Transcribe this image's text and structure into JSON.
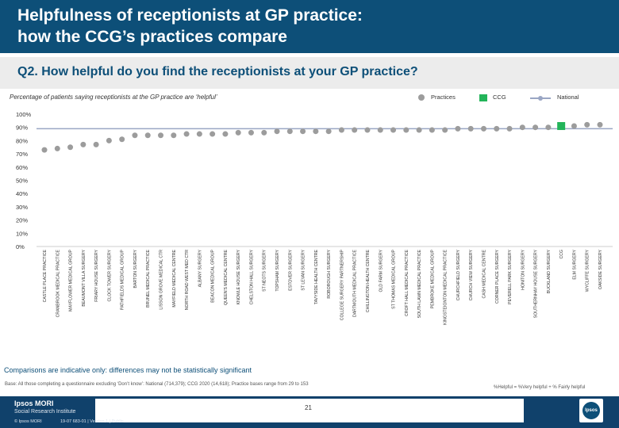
{
  "header": {
    "title_line1": "Helpfulness of receptionists at GP practice:",
    "title_line2": "how the CCG’s practices compare"
  },
  "question": "Q2. How helpful do you find the receptionists at your GP practice?",
  "chart_data": {
    "type": "scatter",
    "title": "Percentage of patients saying receptionists at the GP practice are ‘helpful’",
    "ylim": [
      0,
      100
    ],
    "yticks": [
      "0%",
      "10%",
      "20%",
      "30%",
      "40%",
      "50%",
      "60%",
      "70%",
      "80%",
      "90%",
      "100%"
    ],
    "legend": [
      "Practices",
      "CCG",
      "National"
    ],
    "legend_position": "top-right",
    "national": 89,
    "ccg": 91,
    "categories": [
      "CASTLE PLACE PRACTICE",
      "CRANBROOK MEDICAL PRACTICE",
      "MAYFLOWER MEDICAL GROUP",
      "BEAUMONT VILLA SURGERY",
      "FRIARY HOUSE SURGERY",
      "CLOCK TOWER SURGERY",
      "PATHFIELDS MEDICAL GROUP",
      "BARTON SURGERY",
      "BRUNEL MEDICAL PRACTICE",
      "LISSON GROVE MEDICAL CTR",
      "MAYFIELD MEDICAL CENTRE",
      "NORTH ROAD WEST MED CTR",
      "ALBANY SURGERY",
      "BEACON MEDICAL GROUP",
      "QUEEN'S MEDICAL CENTRE",
      "KNOWLE HOUSE SURGERY",
      "CHELSTON HALL SURGERY",
      "ST NEOTS SURGERY",
      "TOPSHAM SURGERY",
      "ESTOVER SURGERY",
      "ST LEVAN SURGERY",
      "TAVYSIDE HEALTH CENTRE",
      "ROBOROUGH SURGERY",
      "COLLEGE SURGERY PARTNERSHIP",
      "DARTMOUTH MEDICAL PRACTICE",
      "CHILLINGTON HEALTH CENTRE",
      "OLD FARM SURGERY",
      "ST THOMAS MEDICAL GROUP",
      "CROFT HALL MEDICAL PRACTICE",
      "SOUTH LAWN MEDICAL PRACTICE",
      "PEMBROKE MEDICAL GROUP",
      "KINGSTEIGNTON MEDICAL PRACTICE",
      "CHURCHFIELD SURGERY",
      "CHURCH VIEW SURGERY",
      "CASH MEDICAL CENTRE",
      "CORNER PLACE SURGERY",
      "PEVERELL PARK SURGERY",
      "HONITON SURGERY",
      "SOUTHERNHAY HOUSE SURGERY",
      "BUCKLAND SURGERY",
      "CCG",
      "ELM SURGERY",
      "WYCLIFFE SURGERY",
      "OAKSIDE SURGERY"
    ],
    "values": [
      73,
      74,
      75,
      77,
      77,
      80,
      81,
      84,
      84,
      84,
      84,
      85,
      85,
      85,
      85,
      86,
      86,
      86,
      87,
      87,
      87,
      87,
      87,
      88,
      88,
      88,
      88,
      88,
      88,
      88,
      88,
      88,
      89,
      89,
      89,
      89,
      89,
      90,
      90,
      90,
      91,
      91,
      92,
      92
    ],
    "ccg_index": 40
  },
  "disclaimer": "Comparisons are indicative only: differences may not be statistically significant",
  "base_note": "Base: All those completing a questionnaire excluding ‘Don’t know’: National (714,379); CCG 2020 (14,618); Practice bases range from 29 to 153",
  "helpful_note": "%Helpful = %Very helpful + % Fairly helpful",
  "footer": {
    "logo_line1": "Ipsos MORI",
    "logo_line2": "Social Research Institute",
    "copyright": "© Ipsos MORI",
    "job_number": "19-07 683-01 | Version 1 | Public",
    "page_number": "21",
    "brand": "Ipsos"
  },
  "colors": {
    "header_bg": "#0d4f78",
    "practice_dot": "#9c9c9c",
    "ccg_bar": "#23b45a",
    "national_line": "#9aa6c4"
  }
}
